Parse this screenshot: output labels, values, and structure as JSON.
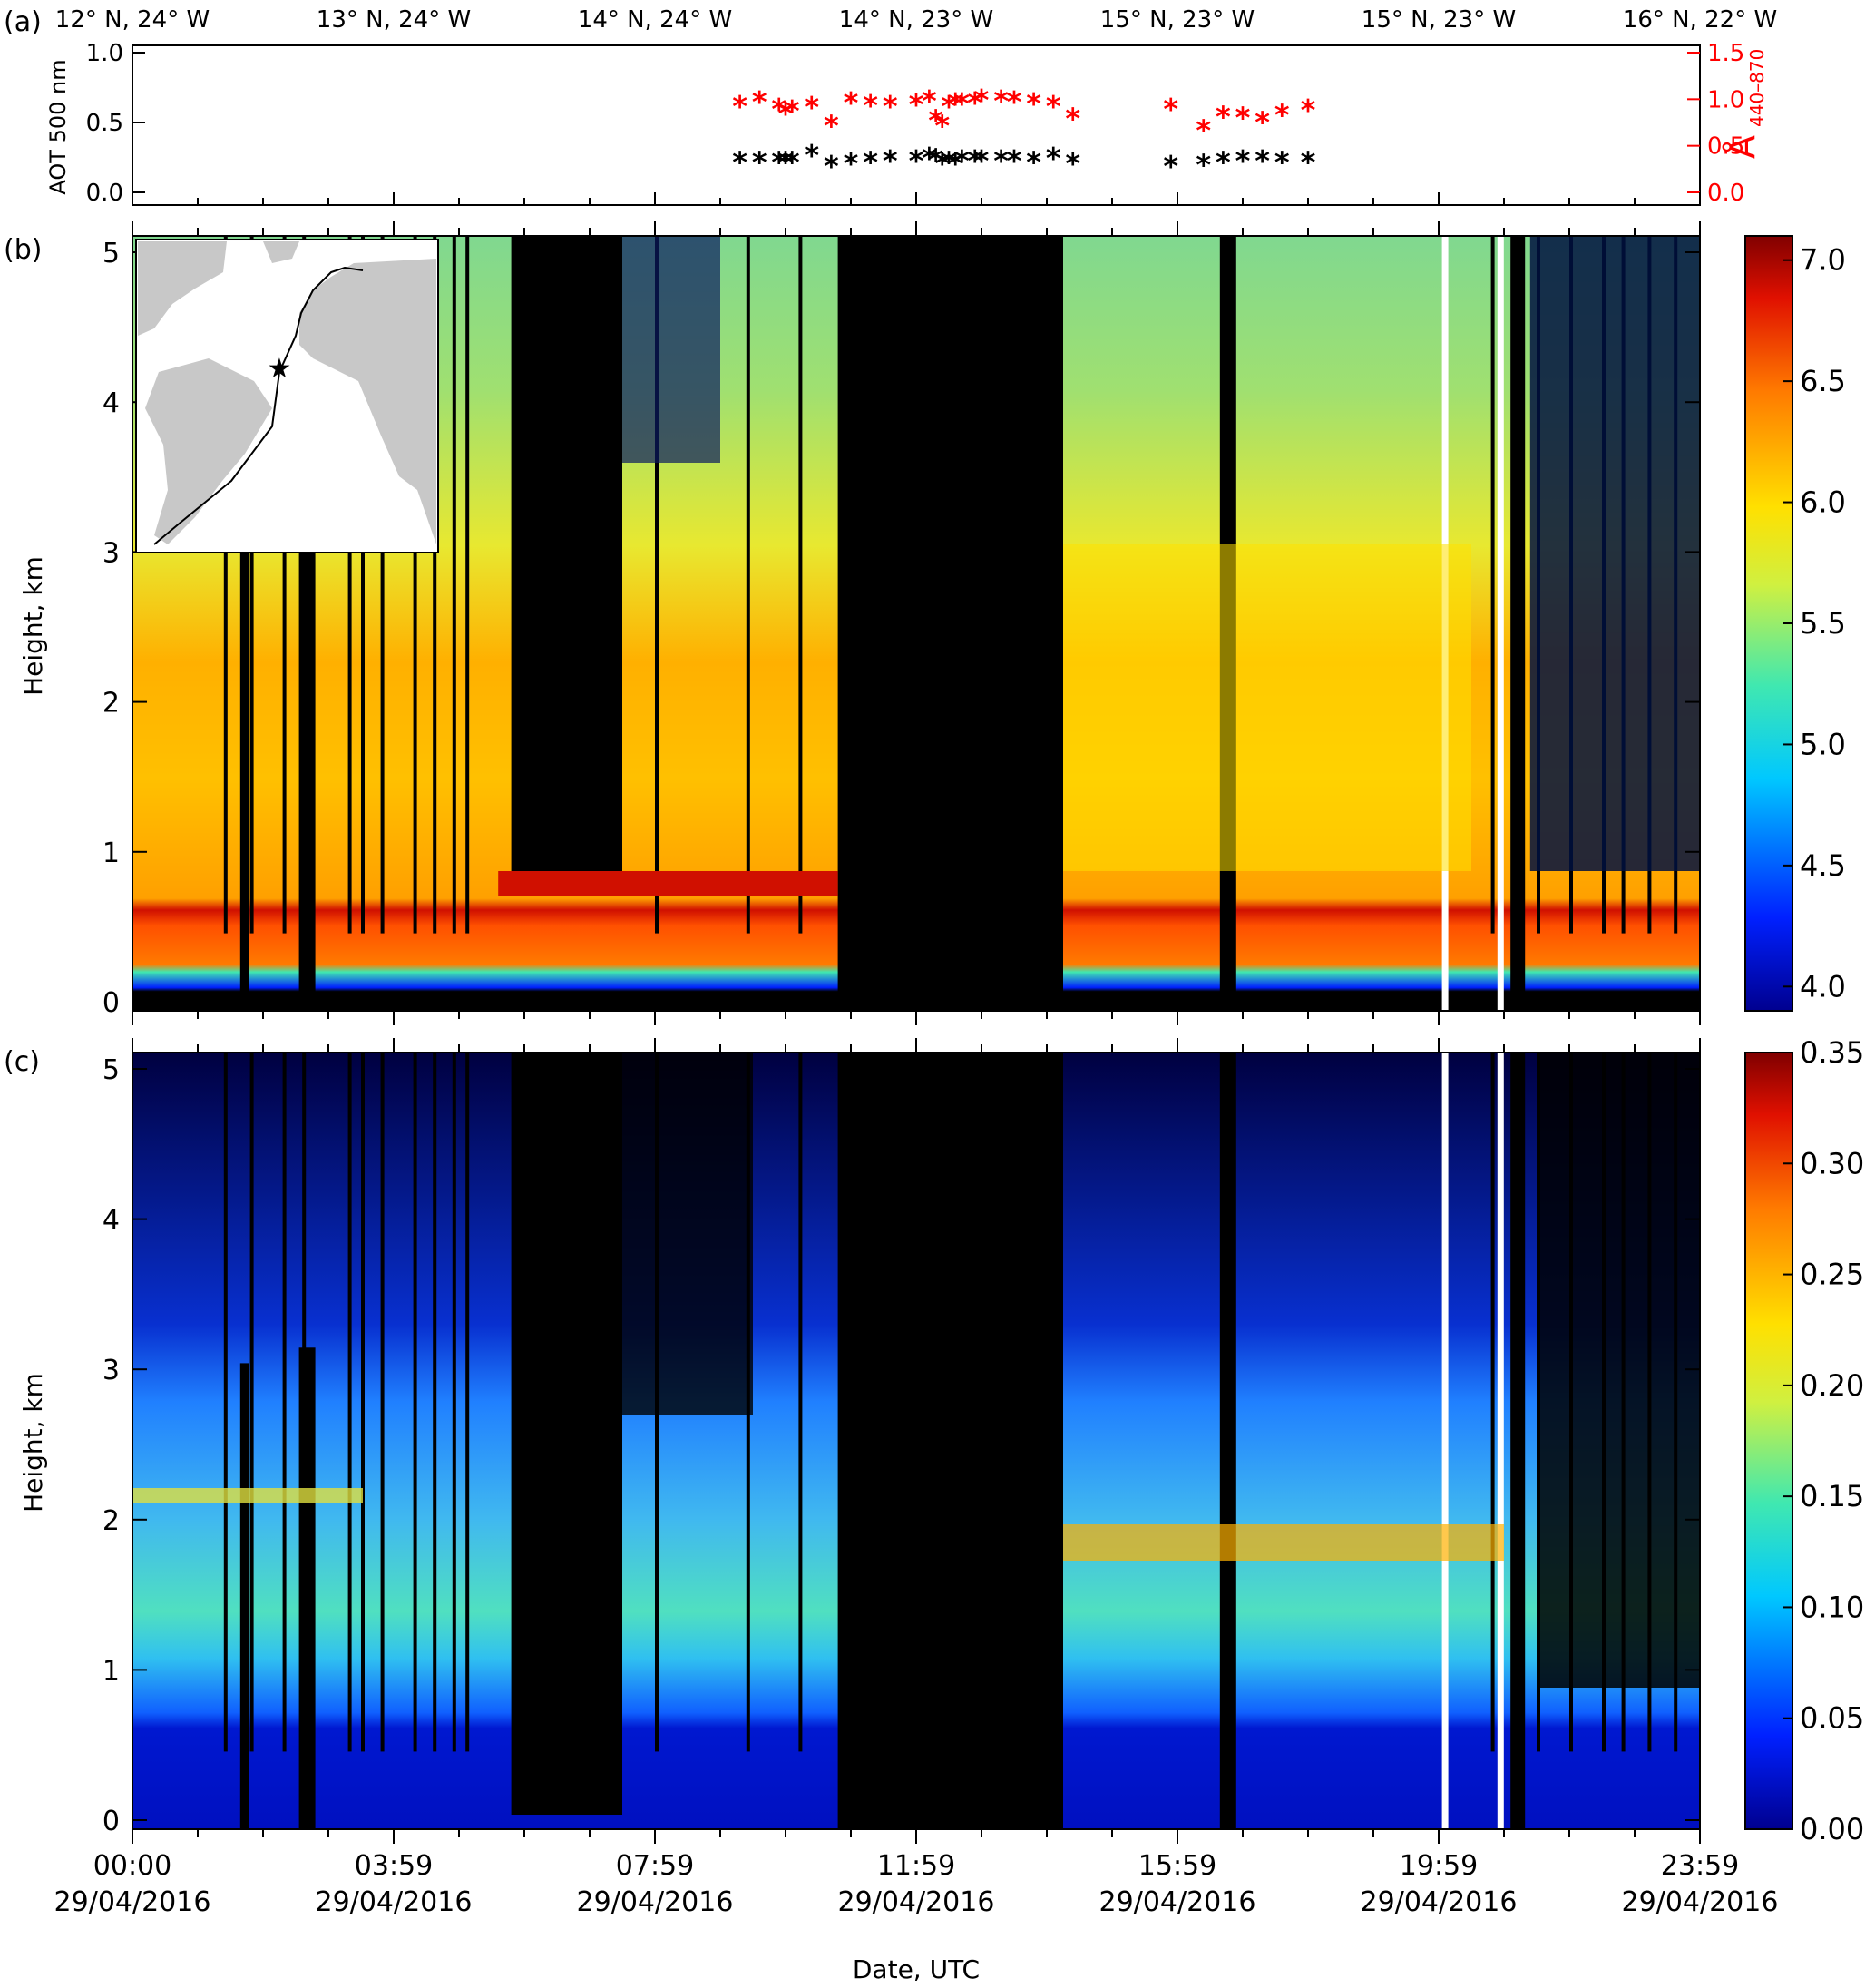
{
  "panel_labels": [
    "(a)",
    "(b)",
    "(c)"
  ],
  "top_positions": [
    "12° N, 24° W",
    "13° N, 24° W",
    "14° N, 24° W",
    "14° N, 23° W",
    "15° N, 23° W",
    "15° N, 23° W",
    "16° N, 22° W"
  ],
  "time_ticks": [
    {
      "time": "00:00",
      "date": "29/04/2016",
      "h": 0
    },
    {
      "time": "03:59",
      "date": "29/04/2016",
      "h": 4
    },
    {
      "time": "07:59",
      "date": "29/04/2016",
      "h": 8
    },
    {
      "time": "11:59",
      "date": "29/04/2016",
      "h": 12
    },
    {
      "time": "15:59",
      "date": "29/04/2016",
      "h": 16
    },
    {
      "time": "19:59",
      "date": "29/04/2016",
      "h": 20
    },
    {
      "time": "23:59",
      "date": "29/04/2016",
      "h": 24
    }
  ],
  "xlabel": "Date, UTC",
  "colors": {
    "aot": "#000000",
    "angstrom": "#ff0000",
    "nodata": "#000000",
    "gap": "#ffffff"
  },
  "chart_data": [
    {
      "type": "scatter",
      "panel": "(a)",
      "ylabel": "AOT 500 nm",
      "ylabel2_main": "Å",
      "ylabel2_sub": "440–870",
      "ylim": [
        0,
        1.0
      ],
      "ylim2": [
        0,
        1.5
      ],
      "yticks": [
        "0.0",
        "0.5",
        "1.0"
      ],
      "yticks2": [
        "0.0",
        "0.5",
        "1.0",
        "1.5"
      ],
      "xlim": [
        0,
        24
      ],
      "series": [
        {
          "values_aot": [
            0.22,
            0.22,
            0.22,
            0.22,
            0.22,
            0.27,
            0.19,
            0.21,
            0.22,
            0.23,
            0.23,
            0.25,
            0.24,
            0.21,
            0.22,
            0.21,
            0.23,
            0.23,
            0.23,
            0.23,
            0.23,
            0.22,
            0.25,
            0.21,
            0.19,
            0.2,
            0.22,
            0.23,
            0.23,
            0.22,
            0.22
          ],
          "values_angstrom": [
            0.93,
            0.98,
            0.9,
            0.85,
            0.88,
            0.92,
            0.72,
            0.97,
            0.94,
            0.93,
            0.95,
            0.99,
            0.78,
            0.72,
            0.93,
            0.96,
            0.96,
            0.97,
            1.0,
            0.99,
            0.98,
            0.96,
            0.93,
            0.8,
            0.9,
            0.67,
            0.82,
            0.81,
            0.76,
            0.84,
            0.89
          ],
          "x": [
            9.3,
            9.6,
            9.9,
            10.0,
            10.1,
            10.4,
            10.7,
            11.0,
            11.3,
            11.6,
            12.0,
            12.2,
            12.3,
            12.4,
            12.5,
            12.6,
            12.7,
            12.9,
            13.0,
            13.3,
            13.5,
            13.8,
            14.1,
            14.4,
            15.9,
            16.4,
            16.7,
            17.0,
            17.3,
            17.6,
            18.0
          ]
        }
      ]
    },
    {
      "type": "heatmap",
      "panel": "(b)",
      "ylabel": "Height, km",
      "ylim": [
        0,
        5
      ],
      "yticks": [
        "0",
        "1",
        "2",
        "3",
        "4",
        "5"
      ],
      "colorbar_range": [
        3.9,
        7.1
      ],
      "colorbar_ticks": [
        "4.0",
        "4.5",
        "5.0",
        "5.5",
        "6.0",
        "6.5",
        "7.0"
      ]
    },
    {
      "type": "heatmap",
      "panel": "(c)",
      "ylabel": "Height, km",
      "ylim": [
        0,
        5
      ],
      "yticks": [
        "0",
        "1",
        "2",
        "3",
        "4",
        "5"
      ],
      "colorbar_range": [
        0.0,
        0.35
      ],
      "colorbar_ticks": [
        "0.00",
        "0.05",
        "0.10",
        "0.15",
        "0.20",
        "0.25",
        "0.30",
        "0.35"
      ]
    }
  ]
}
